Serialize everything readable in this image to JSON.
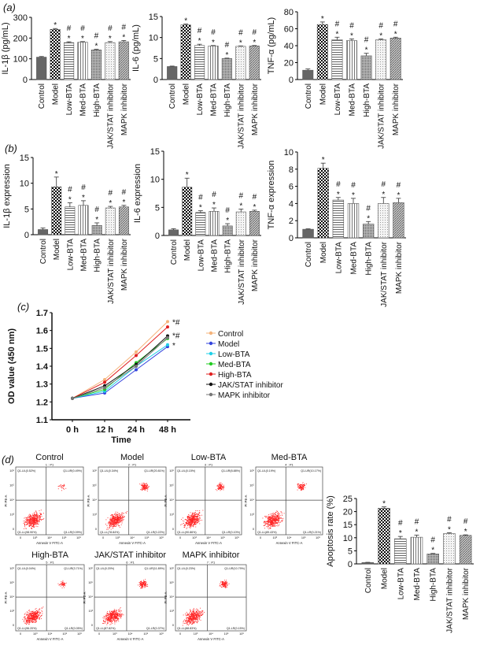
{
  "panel_labels": {
    "a": "(a)",
    "b": "(b)",
    "c": "(c)",
    "d": "(d)"
  },
  "categories": [
    "Control",
    "Model",
    "Low-BTA",
    "Med-BTA",
    "High-BTA",
    "JAK/STAT inhibitor",
    "MAPK inhibitor"
  ],
  "significance": [
    "",
    "*",
    "*#",
    "*#",
    "*#",
    "*#",
    "*#"
  ],
  "chart_data": [
    {
      "id": "a-il1b",
      "type": "bar",
      "ylabel": "IL-1β (pg/mL)",
      "ylim": [
        0,
        300
      ],
      "ticks": [
        0,
        100,
        200,
        300
      ],
      "values": [
        108,
        242,
        178,
        180,
        143,
        178,
        182
      ],
      "errors": [
        3,
        4,
        4,
        3,
        3,
        5,
        6
      ]
    },
    {
      "id": "a-il6",
      "type": "bar",
      "ylabel": "IL-6 (pg/mL)",
      "ylim": [
        0,
        15
      ],
      "ticks": [
        0,
        5,
        10,
        15
      ],
      "values": [
        3.1,
        13.0,
        8.1,
        8.0,
        5.0,
        7.9,
        8.0
      ],
      "errors": [
        0.1,
        0.2,
        0.3,
        0.1,
        0.1,
        0.1,
        0.1
      ]
    },
    {
      "id": "a-tnf",
      "type": "bar",
      "ylabel": "TNF-α (pg/mL)",
      "ylim": [
        0,
        80
      ],
      "ticks": [
        0,
        20,
        40,
        60,
        80
      ],
      "values": [
        11,
        65,
        47,
        46,
        28,
        47,
        49
      ],
      "errors": [
        1.5,
        3,
        3,
        2,
        3,
        1,
        1
      ]
    },
    {
      "id": "b-il1b",
      "type": "bar",
      "ylabel": "IL-1β expression",
      "ylim": [
        0,
        15
      ],
      "ticks": [
        0,
        5,
        10,
        15
      ],
      "values": [
        1.0,
        9.3,
        5.4,
        5.7,
        1.8,
        5.2,
        5.4
      ],
      "errors": [
        0.3,
        1.9,
        0.8,
        0.9,
        0.5,
        0.3,
        0.3
      ]
    },
    {
      "id": "b-il6",
      "type": "bar",
      "ylabel": "IL-6 expression",
      "ylim": [
        0,
        15
      ],
      "ticks": [
        0,
        5,
        10,
        15
      ],
      "values": [
        1.0,
        8.6,
        4.1,
        4.3,
        1.7,
        4.2,
        4.3
      ],
      "errors": [
        0.2,
        1.6,
        0.3,
        0.6,
        0.4,
        0.5,
        0.2
      ]
    },
    {
      "id": "b-tnf",
      "type": "bar",
      "ylabel": "TNF-α expression",
      "ylim": [
        0,
        10
      ],
      "ticks": [
        0,
        2,
        4,
        6,
        8,
        10
      ],
      "values": [
        1.0,
        8.1,
        4.4,
        4.0,
        1.6,
        4.0,
        4.1
      ],
      "errors": [
        0.05,
        0.6,
        0.3,
        0.6,
        0.3,
        0.7,
        0.5
      ]
    },
    {
      "id": "c-od",
      "type": "line",
      "ylabel": "OD value (450 nm)",
      "xlabel": "Time",
      "x": [
        "0 h",
        "12 h",
        "24 h",
        "48 h"
      ],
      "ylim": [
        1.1,
        1.7
      ],
      "ticks": [
        1.1,
        1.2,
        1.3,
        1.4,
        1.5,
        1.6,
        1.7
      ],
      "legend_position": "right",
      "series": [
        {
          "name": "Control",
          "color": "#f5b37a",
          "values": [
            1.22,
            1.325,
            1.48,
            1.65
          ]
        },
        {
          "name": "Model",
          "color": "#3344dd",
          "values": [
            1.22,
            1.25,
            1.38,
            1.51
          ]
        },
        {
          "name": "Low-BTA",
          "color": "#1fd0e8",
          "values": [
            1.22,
            1.26,
            1.4,
            1.52
          ]
        },
        {
          "name": "Med-BTA",
          "color": "#22cc22",
          "values": [
            1.22,
            1.27,
            1.42,
            1.555
          ]
        },
        {
          "name": "High-BTA",
          "color": "#e02020",
          "values": [
            1.22,
            1.31,
            1.46,
            1.62
          ]
        },
        {
          "name": "JAK/STAT inhibitor",
          "color": "#111111",
          "values": [
            1.22,
            1.29,
            1.41,
            1.57
          ]
        },
        {
          "name": "MAPK inhibitor",
          "color": "#777777",
          "values": [
            1.22,
            1.28,
            1.4,
            1.56
          ]
        }
      ],
      "annotations": [
        {
          "text": "*#",
          "y": 1.65
        },
        {
          "text": "*#",
          "y": 1.575
        },
        {
          "text": "*",
          "y": 1.52
        }
      ]
    },
    {
      "id": "d-apoptosis",
      "type": "bar",
      "ylabel": "Apoptosis rate (%)",
      "ylim": [
        0,
        25
      ],
      "ticks": [
        0,
        5,
        10,
        15,
        20,
        25
      ],
      "values": [
        0.5,
        21.3,
        9.6,
        10.2,
        3.8,
        11.6,
        10.9
      ],
      "errors": [
        0.1,
        0.5,
        0.9,
        0.8,
        0.2,
        0.3,
        0.2
      ]
    }
  ],
  "flow": {
    "x_axis_label": "Annexin V FITC-A",
    "y_axis_label": "PI PE-A",
    "x_ticks": [
      "0",
      "10³",
      "10⁴",
      "10⁵",
      "10⁶"
    ],
    "y_ticks": [
      "0",
      "10³",
      "10⁴",
      "10⁵",
      "10⁶"
    ],
    "point_color": "#ff2020",
    "plots": [
      {
        "title": "Control",
        "sample": "1 : P1",
        "ul": "Q1-UL(0.52%)",
        "ur": "Q1-UR(0.49%)",
        "ll": "Q1-LL(98.90%)",
        "lr": "Q1-LR(0.09%)"
      },
      {
        "title": "Model",
        "sample": "2 : P1",
        "ul": "Q1-UL(0.34%)",
        "ur": "Q1-UR(20.81%)",
        "ll": "Q1-LL(78.84%)",
        "lr": "Q1-LR(0.22%)"
      },
      {
        "title": "Low-BTA",
        "sample": "3 : P1",
        "ul": "Q1-UL(0.15%)",
        "ur": "Q1-UR(8.88%)",
        "ll": "Q1-LL(90.86%)",
        "lr": "Q1-LR(0.10%)"
      },
      {
        "title": "Med-BTA",
        "sample": "4 : P1",
        "ul": "Q1-UL(0.19%)",
        "ur": "Q1-UR(10.17%)",
        "ll": "Q1-LL(89.43%)",
        "lr": "Q1-LR(0.21%)"
      },
      {
        "title": "High-BTA",
        "sample": "5 : P1",
        "ul": "Q1-UL(0.04%)",
        "ur": "Q1-UR(3.71%)",
        "ll": "Q1-LL(96.20%)",
        "lr": "Q1-LR(0.05%)"
      },
      {
        "title": "JAK/STAT inhibitor",
        "sample": "6 : P1",
        "ul": "Q1-UL(0.20%)",
        "ur": "Q1-UR(11.89%)",
        "ll": "Q1-LL(87.82%)",
        "lr": "Q1-LR(0.37%)"
      },
      {
        "title": "MAPK inhibitor",
        "sample": "7 : P1",
        "ul": "Q1-UL(0.23%)",
        "ur": "Q1-UR(10.79%)",
        "ll": "Q1-LL(88.83%)",
        "lr": "Q1-LR(0.15%)"
      }
    ]
  }
}
